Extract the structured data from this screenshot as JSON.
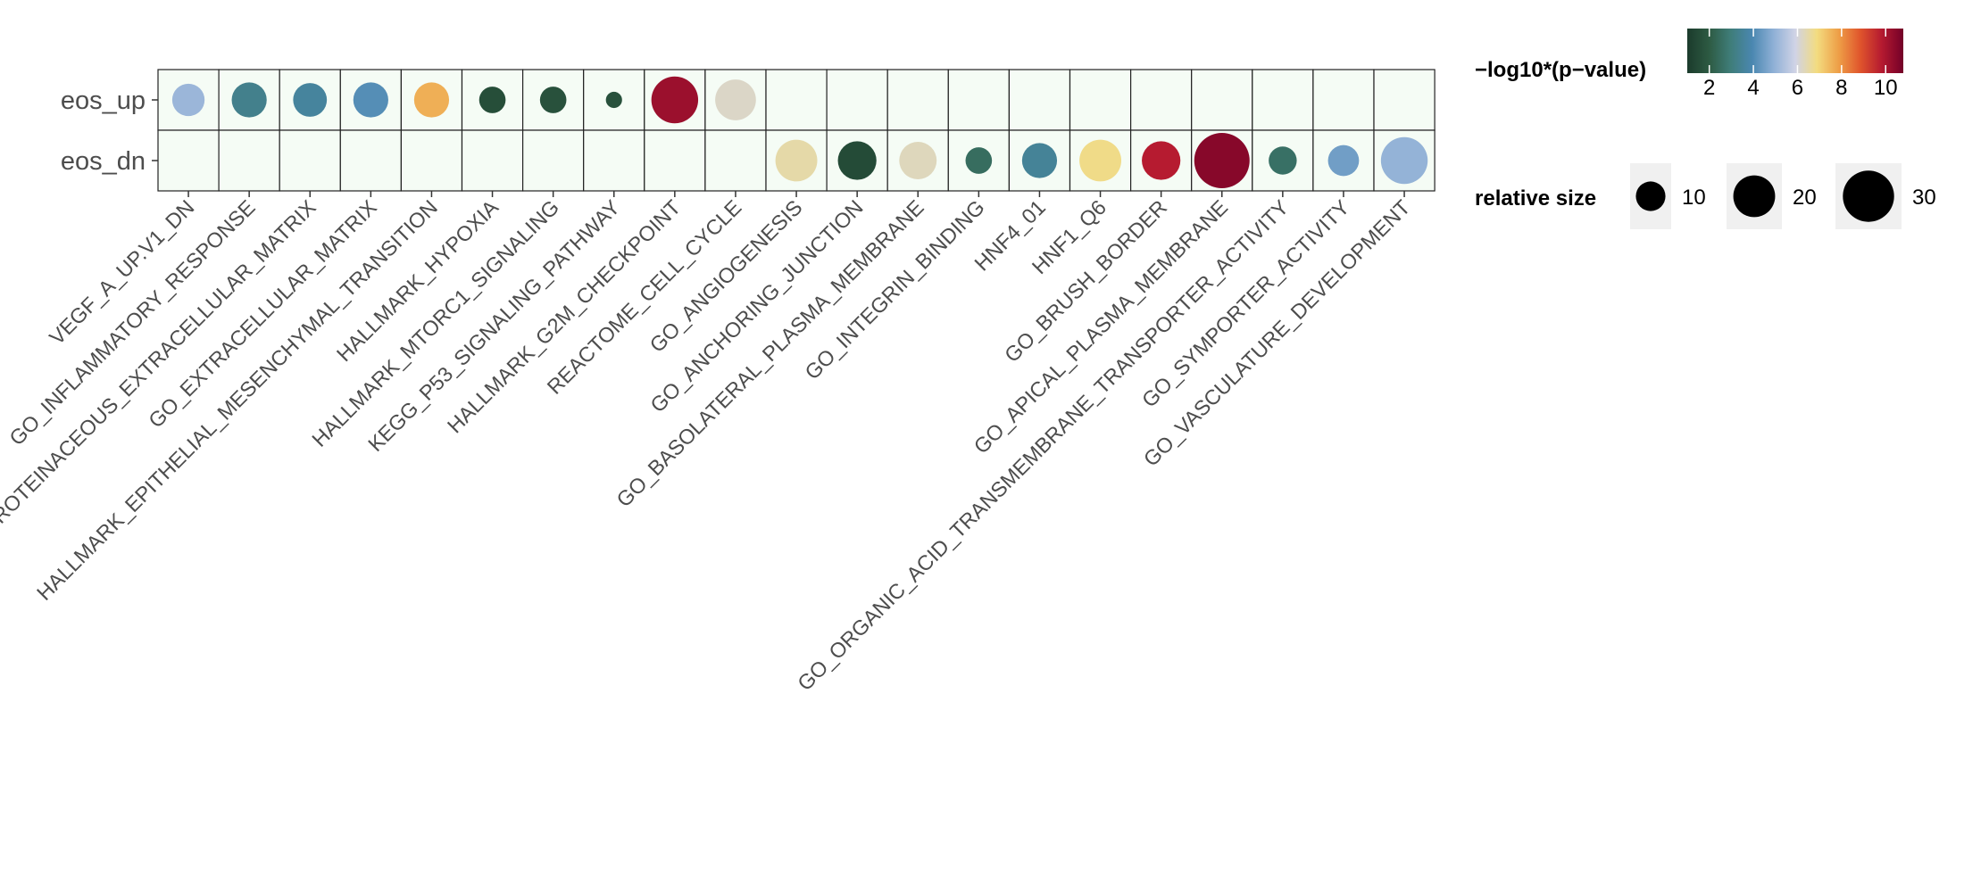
{
  "chart_data": {
    "type": "bubble-matrix",
    "rows": [
      "eos_up",
      "eos_dn"
    ],
    "columns": [
      "VEGF_A_UP.V1_DN",
      "GO_INFLAMMATORY_RESPONSE",
      "GO_PROTEINACEOUS_EXTRACELLULAR_MATRIX",
      "GO_EXTRACELLULAR_MATRIX",
      "HALLMARK_EPITHELIAL_MESENCHYMAL_TRANSITION",
      "HALLMARK_HYPOXIA",
      "HALLMARK_MTORC1_SIGNALING",
      "KEGG_P53_SIGNALING_PATHWAY",
      "HALLMARK_G2M_CHECKPOINT",
      "REACTOME_CELL_CYCLE",
      "GO_ANGIOGENESIS",
      "GO_ANCHORING_JUNCTION",
      "GO_BASOLATERAL_PLASMA_MEMBRANE",
      "GO_INTEGRIN_BINDING",
      "HNF4_01",
      "HNF1_Q6",
      "GO_BRUSH_BORDER",
      "GO_APICAL_PLASMA_MEMBRANE",
      "GO_ORGANIC_ACID_TRANSMEMBRANE_TRANSPORTER_ACTIVITY",
      "GO_SYMPORTER_ACTIVITY",
      "GO_VASCULATURE_DEVELOPMENT"
    ],
    "points": [
      {
        "row": "eos_up",
        "column": "VEGF_A_UP.V1_DN",
        "neg_log10_p": 5.1,
        "size": 12
      },
      {
        "row": "eos_up",
        "column": "GO_INFLAMMATORY_RESPONSE",
        "neg_log10_p": 3.3,
        "size": 14
      },
      {
        "row": "eos_up",
        "column": "GO_PROTEINACEOUS_EXTRACELLULAR_MATRIX",
        "neg_log10_p": 3.6,
        "size": 13
      },
      {
        "row": "eos_up",
        "column": "GO_EXTRACELLULAR_MATRIX",
        "neg_log10_p": 4.1,
        "size": 14
      },
      {
        "row": "eos_up",
        "column": "HALLMARK_EPITHELIAL_MESENCHYMAL_TRANSITION",
        "neg_log10_p": 7.6,
        "size": 14
      },
      {
        "row": "eos_up",
        "column": "HALLMARK_HYPOXIA",
        "neg_log10_p": 1.6,
        "size": 8
      },
      {
        "row": "eos_up",
        "column": "HALLMARK_MTORC1_SIGNALING",
        "neg_log10_p": 1.7,
        "size": 8
      },
      {
        "row": "eos_up",
        "column": "KEGG_P53_SIGNALING_PATHWAY",
        "neg_log10_p": 1.7,
        "size": 3
      },
      {
        "row": "eos_up",
        "column": "HALLMARK_G2M_CHECKPOINT",
        "neg_log10_p": 10.2,
        "size": 25
      },
      {
        "row": "eos_up",
        "column": "REACTOME_CELL_CYCLE",
        "neg_log10_p": 6.2,
        "size": 19
      },
      {
        "row": "eos_dn",
        "column": "GO_ANGIOGENESIS",
        "neg_log10_p": 6.5,
        "size": 20
      },
      {
        "row": "eos_dn",
        "column": "GO_ANCHORING_JUNCTION",
        "neg_log10_p": 1.5,
        "size": 17
      },
      {
        "row": "eos_dn",
        "column": "GO_BASOLATERAL_PLASMA_MEMBRANE",
        "neg_log10_p": 6.3,
        "size": 16
      },
      {
        "row": "eos_dn",
        "column": "GO_INTEGRIN_BINDING",
        "neg_log10_p": 2.5,
        "size": 8
      },
      {
        "row": "eos_dn",
        "column": "HNF4_01",
        "neg_log10_p": 3.5,
        "size": 14
      },
      {
        "row": "eos_dn",
        "column": "HNF1_Q6",
        "neg_log10_p": 6.8,
        "size": 20
      },
      {
        "row": "eos_dn",
        "column": "GO_BRUSH_BORDER",
        "neg_log10_p": 9.8,
        "size": 17
      },
      {
        "row": "eos_dn",
        "column": "GO_APICAL_PLASMA_MEMBRANE",
        "neg_log10_p": 10.5,
        "size": 35
      },
      {
        "row": "eos_dn",
        "column": "GO_ORGANIC_ACID_TRANSMEMBRANE_TRANSPORTER_ACTIVITY",
        "neg_log10_p": 2.6,
        "size": 9
      },
      {
        "row": "eos_dn",
        "column": "GO_SYMPORTER_ACTIVITY",
        "neg_log10_p": 4.5,
        "size": 11
      },
      {
        "row": "eos_dn",
        "column": "GO_VASCULATURE_DEVELOPMENT",
        "neg_log10_p": 5.0,
        "size": 25
      }
    ],
    "color_legend": {
      "title": "−log10*(p−value)",
      "range": [
        1.0,
        10.8
      ],
      "ticks": [
        2,
        4,
        6,
        8,
        10
      ],
      "tick_labels": [
        "2",
        "4",
        "6",
        "8",
        "10"
      ],
      "palette": [
        "#1b3b2c",
        "#2d5a42",
        "#3f7d79",
        "#4a87b0",
        "#8fb0d6",
        "#d0d3e6",
        "#f3dc80",
        "#ee9f47",
        "#e0552c",
        "#b51a30",
        "#730028"
      ]
    },
    "size_legend": {
      "title": "relative size",
      "values": [
        10,
        20,
        30
      ],
      "labels": [
        "10",
        "20",
        "30"
      ]
    },
    "colors": {
      "cell_fill": "#f5fcf5",
      "cell_border": "#222222",
      "row_label": "#4d4d4d",
      "size_key_bg": "#f0f0f0"
    }
  }
}
